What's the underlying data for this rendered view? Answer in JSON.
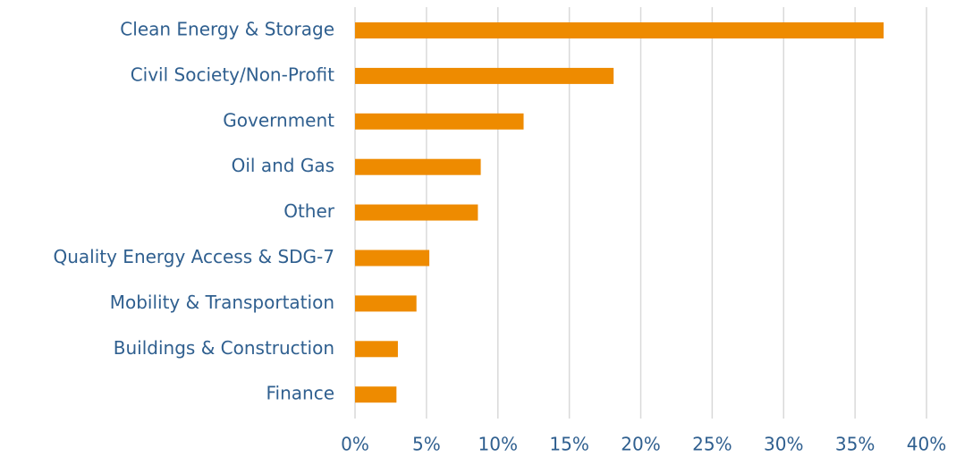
{
  "chart_data": {
    "type": "hbar",
    "categories": [
      "Clean Energy & Storage",
      "Civil Society/Non-Profit",
      "Government",
      "Oil and Gas",
      "Other",
      "Quality Energy Access & SDG-7",
      "Mobility & Transportation",
      "Buildings & Construction",
      "Finance"
    ],
    "values": [
      37.0,
      18.1,
      11.8,
      8.8,
      8.6,
      5.2,
      4.3,
      3.0,
      2.9
    ],
    "color": "#ee8b00",
    "xlim": [
      0,
      40
    ],
    "xticks": [
      {
        "value": 0,
        "label": "0%"
      },
      {
        "value": 5,
        "label": "5%"
      },
      {
        "value": 10,
        "label": "10%"
      },
      {
        "value": 15,
        "label": "15%"
      },
      {
        "value": 20,
        "label": "20%"
      },
      {
        "value": 25,
        "label": "25%"
      },
      {
        "value": 30,
        "label": "30%"
      },
      {
        "value": 35,
        "label": "35%"
      },
      {
        "value": 40,
        "label": "40%"
      }
    ],
    "grid": true
  }
}
